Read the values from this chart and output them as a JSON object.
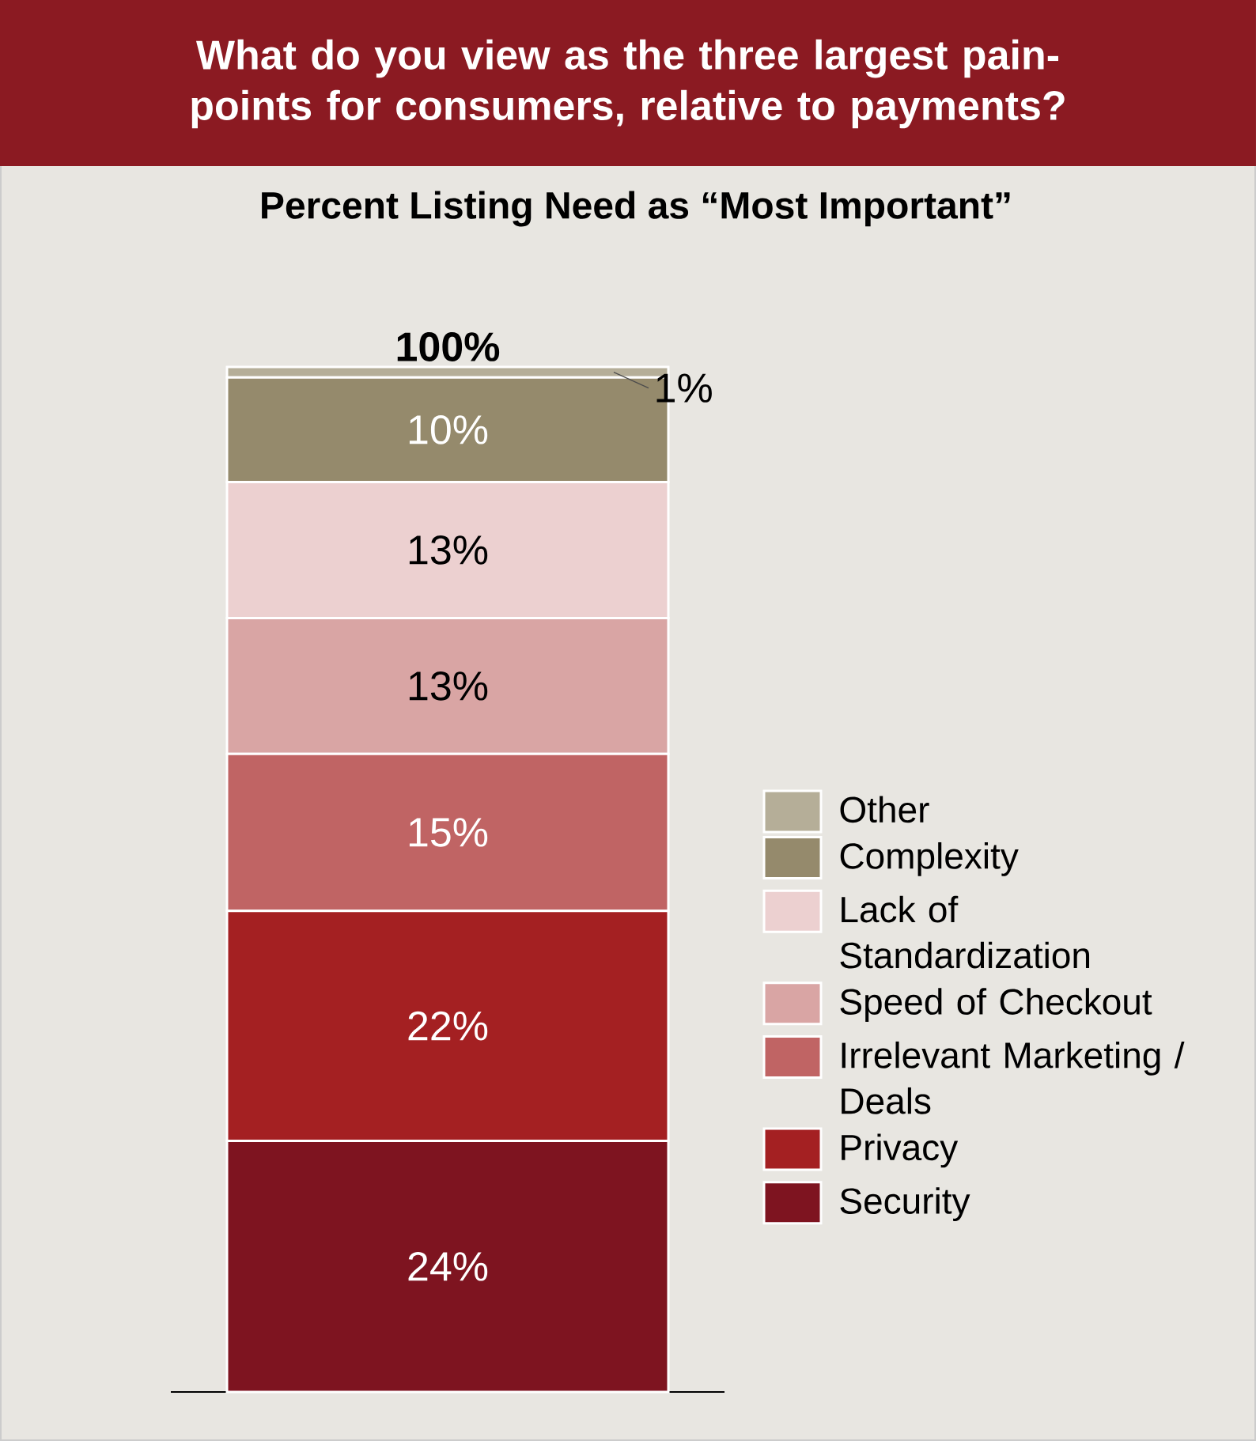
{
  "chart_data": {
    "type": "bar",
    "title": "What do you view as the three largest pain-points for consumers, relative to payments?",
    "subtitle": "Percent Listing Need as “Most Important”",
    "stacked": true,
    "categories": [
      null
    ],
    "legend": "right",
    "totals": [
      "100%"
    ],
    "series": [
      {
        "name": "Security",
        "color": "#7e1420",
        "values": [
          24
        ],
        "value_labels": [
          "24%"
        ]
      },
      {
        "name": "Privacy",
        "color": "#a42022",
        "values": [
          22
        ],
        "value_labels": [
          "22%"
        ]
      },
      {
        "name": "Irrelevant Marketing / Deals",
        "color": "#c06464",
        "values": [
          15
        ],
        "value_labels": [
          "15%"
        ]
      },
      {
        "name": "Speed of Checkout",
        "color": "#d9a5a4",
        "values": [
          13
        ],
        "value_labels": [
          "13%"
        ]
      },
      {
        "name": "Lack of Standardization",
        "color": "#ecd0d0",
        "values": [
          13
        ],
        "value_labels": [
          "13%"
        ]
      },
      {
        "name": "Complexity",
        "color": "#958a6c",
        "values": [
          10
        ],
        "value_labels": [
          "10%"
        ]
      },
      {
        "name": "Other",
        "color": "#b5ae98",
        "values": [
          1
        ],
        "value_labels": [
          "1%"
        ]
      }
    ]
  }
}
